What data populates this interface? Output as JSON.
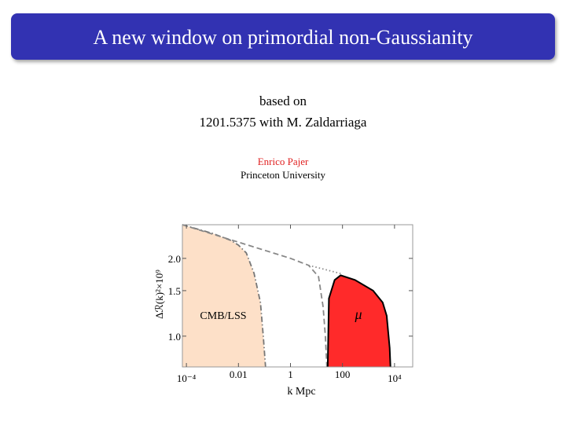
{
  "header": {
    "title": "A new window on primordial non-Gaussianity"
  },
  "body": {
    "lines": [
      "based on",
      "1201.5375 with M. Zaldarriaga"
    ],
    "author": "Enrico Pajer",
    "affiliation": "Princeton University"
  },
  "chart_data": {
    "type": "line",
    "xlabel": "k Mpc",
    "ylabel": "Δℛ(k)²×10⁹",
    "xscale": "log",
    "yscale": "log",
    "xlim": [
      7e-05,
      50000
    ],
    "ylim": [
      0.76,
      2.7
    ],
    "xticks": [
      {
        "value": 0.0001,
        "label": "10⁻⁴"
      },
      0.01,
      1,
      100,
      {
        "value": 10000,
        "label": "10⁴"
      }
    ],
    "yticks": [
      {
        "value": 1,
        "label": "1.0"
      },
      1.5,
      {
        "value": 2,
        "label": "2.0"
      }
    ],
    "series": [
      {
        "name": "CMB/LSS",
        "color": "#777777",
        "fill": "#fde0c8",
        "dash": "dashdot",
        "x": [
          7e-05,
          0.001,
          0.005,
          0.01,
          0.02,
          0.04,
          0.07,
          0.09,
          0.11
        ],
        "y": [
          2.7,
          2.5,
          2.35,
          2.25,
          2.1,
          1.75,
          1.35,
          1.0,
          0.76
        ]
      },
      {
        "color": "#888888",
        "dash": "dashed",
        "x": [
          7e-05,
          1,
          5,
          12,
          18,
          22,
          25
        ],
        "y": [
          2.7,
          2.0,
          1.88,
          1.7,
          1.3,
          1.0,
          0.76
        ]
      },
      {
        "color": "#888888",
        "dash": "dotted",
        "x": [
          5,
          100
        ],
        "y": [
          1.88,
          1.74
        ]
      },
      {
        "name": "μ",
        "color": "#000000",
        "fill": "#ff2a2a",
        "dash": "solid",
        "x": [
          27,
          30,
          50,
          85,
          300,
          1500,
          3500,
          5000,
          6500,
          7000
        ],
        "y": [
          0.76,
          1.4,
          1.65,
          1.72,
          1.65,
          1.5,
          1.35,
          1.2,
          0.9,
          0.76
        ]
      }
    ]
  }
}
